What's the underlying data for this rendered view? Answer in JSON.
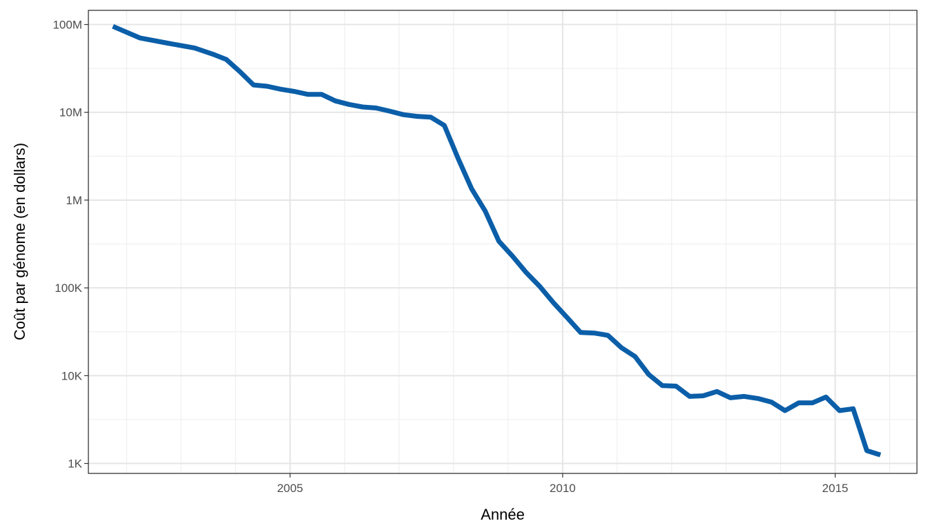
{
  "chart_data": {
    "type": "line",
    "title": "",
    "xlabel": "Année",
    "ylabel": "Coût par génome (en dollars)",
    "x_scale": "linear",
    "y_scale": "log10",
    "xlim": [
      2001.3,
      2016.5
    ],
    "ylim": [
      770,
      145000000
    ],
    "x_ticks": [
      2005,
      2010,
      2015
    ],
    "x_tick_labels": [
      "2005",
      "2010",
      "2015"
    ],
    "y_ticks": [
      1000,
      10000,
      100000,
      1000000,
      10000000,
      100000000
    ],
    "y_tick_labels": [
      "1K",
      "10K",
      "100K",
      "1M",
      "10M",
      "100M"
    ],
    "grid": true,
    "line_color": "#0b5ea8",
    "series": [
      {
        "x": [
          2001.75,
          2002.25,
          2002.75,
          2003.25,
          2003.58,
          2003.83,
          2004.08,
          2004.33,
          2004.58,
          2004.83,
          2005.08,
          2005.33,
          2005.58,
          2005.83,
          2006.08,
          2006.33,
          2006.58,
          2006.83,
          2007.08,
          2007.33,
          2007.58,
          2007.83,
          2008.08,
          2008.33,
          2008.58,
          2008.83,
          2009.08,
          2009.33,
          2009.58,
          2009.83,
          2010.08,
          2010.33,
          2010.58,
          2010.83,
          2011.08,
          2011.33,
          2011.58,
          2011.83,
          2012.08,
          2012.33,
          2012.58,
          2012.83,
          2013.08,
          2013.33,
          2013.58,
          2013.83,
          2014.08,
          2014.33,
          2014.58,
          2014.83,
          2015.08,
          2015.33,
          2015.58,
          2015.83
        ],
        "values": [
          95300000,
          70200000,
          61400000,
          54000000,
          46000000,
          40000000,
          29000000,
          20500000,
          19800000,
          18300000,
          17300000,
          16000000,
          16000000,
          13500000,
          12300000,
          11500000,
          11200000,
          10300000,
          9400000,
          9000000,
          8800000,
          7100000,
          3000000,
          1350000,
          750000,
          340000,
          230000,
          150000,
          104000,
          68000,
          46000,
          31000,
          30600,
          28800,
          20800,
          16500,
          10300,
          7700,
          7600,
          5800,
          5900,
          6600,
          5600,
          5800,
          5500,
          5000,
          4000,
          4900,
          4900,
          5700,
          4000,
          4200,
          1400,
          1250
        ]
      }
    ]
  }
}
